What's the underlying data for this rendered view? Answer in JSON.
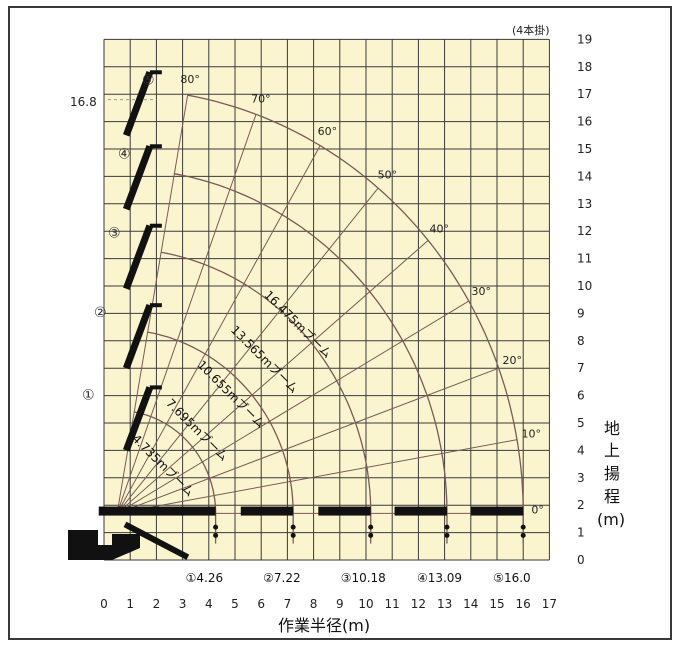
{
  "colors": {
    "grid_bg": "#fbf5cf",
    "grid_line": "#3a3a3a",
    "curve": "#7a5a55",
    "boom": "#111111"
  },
  "top_note": "(4本掛)",
  "x_axis": {
    "title": "作業半径(m)",
    "ticks": [
      "0",
      "1",
      "2",
      "3",
      "4",
      "5",
      "6",
      "7",
      "8",
      "9",
      "10",
      "11",
      "12",
      "13",
      "14",
      "15",
      "16",
      "17"
    ]
  },
  "y_axis": {
    "title_chars": [
      "地",
      "上",
      "揚",
      "程"
    ],
    "title_unit": "(m)",
    "ticks": [
      "0",
      "1",
      "2",
      "3",
      "4",
      "5",
      "6",
      "7",
      "8",
      "9",
      "10",
      "11",
      "12",
      "13",
      "14",
      "15",
      "16",
      "17",
      "18",
      "19"
    ]
  },
  "left_marker": "16.8",
  "booms": [
    {
      "mark": "①",
      "length_label": "4.735mブーム",
      "max_radius": 4.26,
      "max_radius_label": "4.26"
    },
    {
      "mark": "②",
      "length_label": "7.695mブーム",
      "max_radius": 7.22,
      "max_radius_label": "7.22"
    },
    {
      "mark": "③",
      "length_label": "10.655mブーム",
      "max_radius": 10.18,
      "max_radius_label": "10.18"
    },
    {
      "mark": "④",
      "length_label": "13.565mブーム",
      "max_radius": 13.09,
      "max_radius_label": "13.09"
    },
    {
      "mark": "⑤",
      "length_label": "16.475mブーム",
      "max_radius": 16.0,
      "max_radius_label": "16.0"
    }
  ],
  "angles": [
    {
      "label": "0°",
      "deg": 0
    },
    {
      "label": "10°",
      "deg": 10
    },
    {
      "label": "20°",
      "deg": 20
    },
    {
      "label": "30°",
      "deg": 30
    },
    {
      "label": "40°",
      "deg": 40
    },
    {
      "label": "50°",
      "deg": 50
    },
    {
      "label": "60°",
      "deg": 60
    },
    {
      "label": "70°",
      "deg": 70
    },
    {
      "label": "80°",
      "deg": 80
    }
  ]
}
